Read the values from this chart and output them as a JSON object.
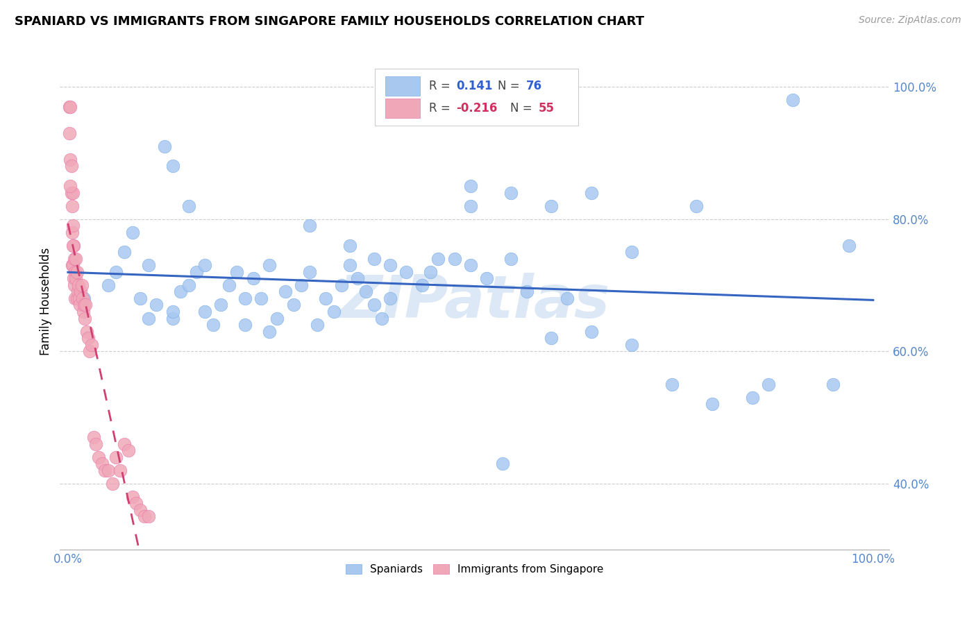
{
  "title": "SPANIARD VS IMMIGRANTS FROM SINGAPORE FAMILY HOUSEHOLDS CORRELATION CHART",
  "source": "Source: ZipAtlas.com",
  "ylabel": "Family Households",
  "blue_color": "#a8c8f0",
  "blue_edge_color": "#7aaee8",
  "pink_color": "#f0a8b8",
  "pink_edge_color": "#e87aaa",
  "blue_line_color": "#3565c0",
  "pink_line_color": "#d04070",
  "pink_line_dash": [
    6,
    5
  ],
  "blue_r": 0.141,
  "pink_r": -0.216,
  "blue_n": 76,
  "pink_n": 55,
  "watermark_text": "ZIPatlas",
  "watermark_color": "#dce8f5",
  "grid_color": "#cccccc",
  "ytick_color": "#5588cc",
  "xtick_color": "#5588cc",
  "ylim_min": 0.3,
  "ylim_max": 1.05,
  "xlim_min": -0.01,
  "xlim_max": 1.02,
  "blue_scatter_x": [
    0.02,
    0.05,
    0.06,
    0.07,
    0.08,
    0.09,
    0.1,
    0.1,
    0.11,
    0.12,
    0.13,
    0.13,
    0.14,
    0.15,
    0.16,
    0.17,
    0.17,
    0.18,
    0.19,
    0.2,
    0.21,
    0.22,
    0.23,
    0.24,
    0.25,
    0.26,
    0.27,
    0.28,
    0.29,
    0.3,
    0.31,
    0.32,
    0.33,
    0.34,
    0.35,
    0.36,
    0.37,
    0.38,
    0.39,
    0.4,
    0.42,
    0.44,
    0.46,
    0.48,
    0.5,
    0.5,
    0.52,
    0.54,
    0.55,
    0.57,
    0.6,
    0.62,
    0.65,
    0.7,
    0.75,
    0.78,
    0.8,
    0.85,
    0.87,
    0.9,
    0.95,
    0.97,
    0.13,
    0.22,
    0.3,
    0.38,
    0.45,
    0.55,
    0.65,
    0.15,
    0.25,
    0.35,
    0.4,
    0.5,
    0.6,
    0.7
  ],
  "blue_scatter_y": [
    0.68,
    0.7,
    0.72,
    0.75,
    0.78,
    0.68,
    0.73,
    0.65,
    0.67,
    0.91,
    0.88,
    0.65,
    0.69,
    0.7,
    0.72,
    0.66,
    0.73,
    0.64,
    0.67,
    0.7,
    0.72,
    0.68,
    0.71,
    0.68,
    0.73,
    0.65,
    0.69,
    0.67,
    0.7,
    0.72,
    0.64,
    0.68,
    0.66,
    0.7,
    0.73,
    0.71,
    0.69,
    0.67,
    0.65,
    0.68,
    0.72,
    0.7,
    0.74,
    0.74,
    0.73,
    0.85,
    0.71,
    0.43,
    0.84,
    0.69,
    0.62,
    0.68,
    0.63,
    0.61,
    0.55,
    0.82,
    0.52,
    0.53,
    0.55,
    0.98,
    0.55,
    0.76,
    0.66,
    0.64,
    0.79,
    0.74,
    0.72,
    0.74,
    0.84,
    0.82,
    0.63,
    0.76,
    0.73,
    0.82,
    0.82,
    0.75
  ],
  "pink_scatter_x": [
    0.002,
    0.002,
    0.003,
    0.003,
    0.004,
    0.004,
    0.005,
    0.005,
    0.005,
    0.006,
    0.006,
    0.006,
    0.007,
    0.007,
    0.008,
    0.008,
    0.009,
    0.009,
    0.01,
    0.01,
    0.011,
    0.011,
    0.012,
    0.013,
    0.014,
    0.015,
    0.016,
    0.017,
    0.018,
    0.019,
    0.02,
    0.021,
    0.022,
    0.023,
    0.025,
    0.027,
    0.029,
    0.032,
    0.035,
    0.038,
    0.042,
    0.046,
    0.05,
    0.055,
    0.06,
    0.065,
    0.07,
    0.075,
    0.08,
    0.085,
    0.09,
    0.095,
    0.1,
    0.003,
    0.006
  ],
  "pink_scatter_y": [
    0.97,
    0.93,
    0.89,
    0.97,
    0.88,
    0.84,
    0.82,
    0.78,
    0.73,
    0.84,
    0.79,
    0.73,
    0.76,
    0.71,
    0.74,
    0.7,
    0.72,
    0.68,
    0.74,
    0.71,
    0.72,
    0.68,
    0.69,
    0.7,
    0.68,
    0.67,
    0.69,
    0.7,
    0.68,
    0.66,
    0.67,
    0.65,
    0.67,
    0.63,
    0.62,
    0.6,
    0.61,
    0.47,
    0.46,
    0.44,
    0.43,
    0.42,
    0.42,
    0.4,
    0.44,
    0.42,
    0.46,
    0.45,
    0.38,
    0.37,
    0.36,
    0.35,
    0.35,
    0.85,
    0.76
  ]
}
